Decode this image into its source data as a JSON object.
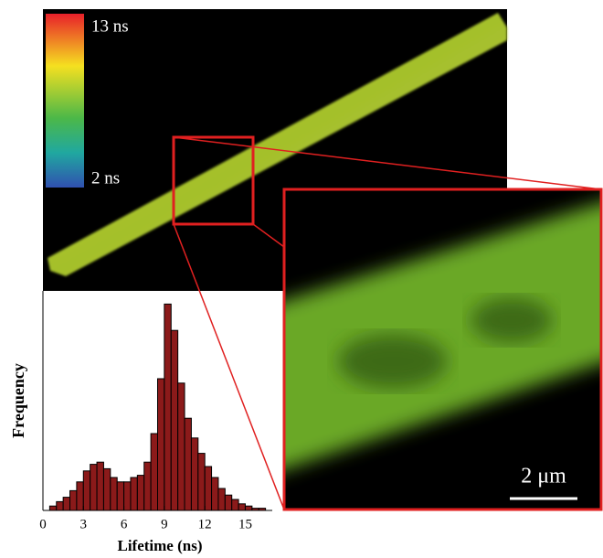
{
  "figure": {
    "colorbar_max": "13 ns",
    "colorbar_min": "2 ns",
    "scale_bar": "2 μm"
  },
  "chart_data": {
    "type": "histogram",
    "x_label": "Lifetime (ns)",
    "y_label": "Frequency",
    "bins": [
      0.5,
      1,
      1.5,
      2,
      2.5,
      3,
      3.5,
      4,
      4.5,
      5,
      5.5,
      6,
      6.5,
      7,
      7.5,
      8,
      8.5,
      9,
      9.5,
      10,
      10.5,
      11,
      11.5,
      12,
      12.5,
      13,
      13.5,
      14,
      14.5,
      15,
      15.5,
      16,
      16.5
    ],
    "values": [
      2,
      4,
      6,
      9,
      13,
      18,
      21,
      22,
      19,
      15,
      13,
      13,
      15,
      16,
      22,
      35,
      60,
      94,
      82,
      58,
      42,
      33,
      26,
      20,
      15,
      10,
      7,
      5,
      3,
      2,
      1,
      1
    ],
    "color": "#8b1a1a",
    "xlim": [
      0,
      17
    ],
    "xticks": [
      0,
      3,
      6,
      9,
      12,
      15
    ],
    "ylim": [
      0,
      100
    ]
  }
}
